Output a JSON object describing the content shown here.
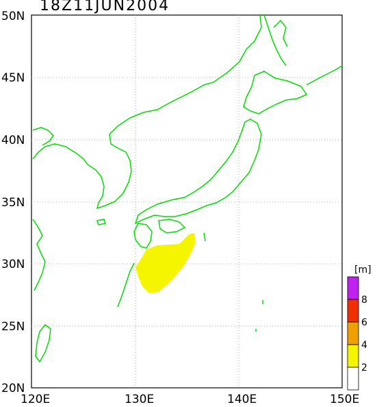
{
  "title": "18Z11JUN2004",
  "map": {
    "lon_range": [
      120,
      150
    ],
    "lat_range": [
      20,
      50
    ],
    "grid": true,
    "coastline_color": "#00dd00"
  },
  "axes": {
    "x_ticks": [
      "120E",
      "130E",
      "140E",
      "150E"
    ],
    "y_ticks": [
      "20N",
      "25N",
      "30N",
      "35N",
      "40N",
      "45N",
      "50N"
    ]
  },
  "colorbar": {
    "unit": "[m]",
    "labels": [
      "2",
      "4",
      "6",
      "8"
    ],
    "colors": [
      "#ffffff",
      "#f5f500",
      "#f0a000",
      "#f03000",
      "#c020f0"
    ]
  },
  "field": {
    "description_color": "#f5f500",
    "level": "2-4"
  }
}
